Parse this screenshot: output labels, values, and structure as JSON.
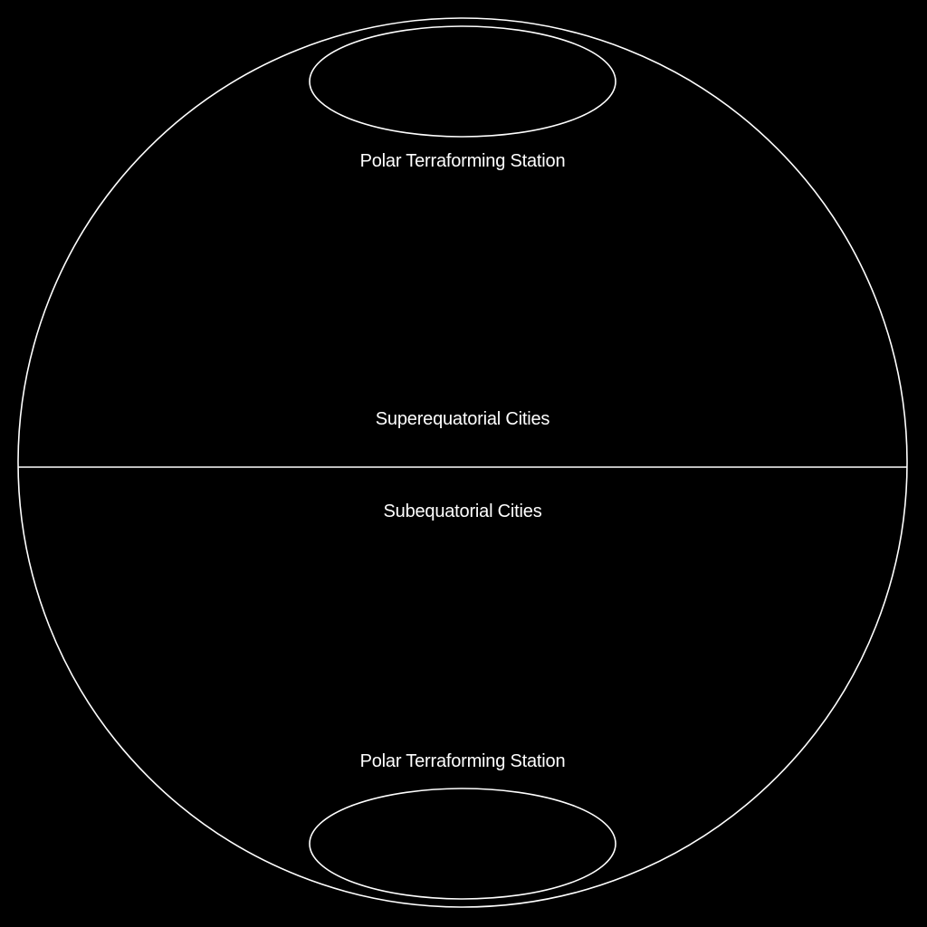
{
  "diagram": {
    "background_color": "#000000",
    "stroke_color": "#ffffff",
    "text_color": "#ffffff",
    "labels": {
      "north_pole": "Polar Terraforming Station",
      "superequatorial": "Superequatorial Cities",
      "subequatorial": "Subequatorial Cities",
      "south_pole": "Polar Terraforming Station"
    }
  }
}
